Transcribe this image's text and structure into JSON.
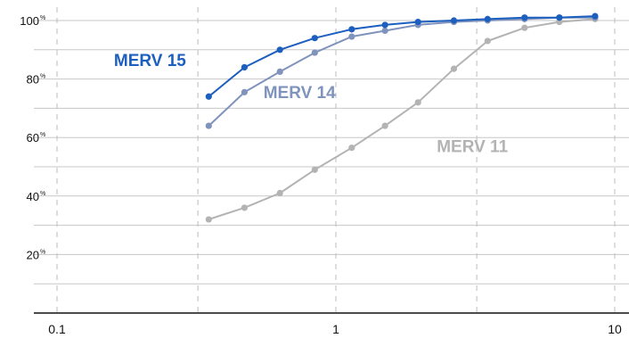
{
  "chart_data": {
    "type": "line",
    "title": "",
    "xlabel": "",
    "ylabel": "",
    "x_scale": "log",
    "xlim": [
      0.1,
      10
    ],
    "ylim": [
      0,
      105
    ],
    "grid": true,
    "x_ticks": [
      {
        "value": 0.1,
        "label": "0.1"
      },
      {
        "value": 1,
        "label": "1"
      },
      {
        "value": 10,
        "label": "10"
      }
    ],
    "y_ticks": [
      {
        "value": 20,
        "label": "20",
        "unit": "%"
      },
      {
        "value": 40,
        "label": "40",
        "unit": "%"
      },
      {
        "value": 60,
        "label": "60",
        "unit": "%"
      },
      {
        "value": 80,
        "label": "80",
        "unit": "%"
      },
      {
        "value": 100,
        "label": "100",
        "unit": "%"
      }
    ],
    "series": [
      {
        "name": "MERV 11",
        "color": "#b3b3b3",
        "label_anchor": {
          "x": 2.3,
          "y": 55
        },
        "x": [
          0.35,
          0.47,
          0.63,
          0.84,
          1.14,
          1.5,
          1.97,
          2.65,
          3.5,
          4.75,
          6.33,
          8.5
        ],
        "y": [
          32,
          36,
          41,
          49,
          56.5,
          64,
          72,
          83.5,
          93,
          97.5,
          99.5,
          100.5
        ]
      },
      {
        "name": "MERV 14",
        "color": "#7f93bd",
        "label_anchor": {
          "x": 0.55,
          "y": 73.5
        },
        "x": [
          0.35,
          0.47,
          0.63,
          0.84,
          1.14,
          1.5,
          1.97,
          2.65,
          3.5,
          4.75,
          6.33,
          8.5
        ],
        "y": [
          64,
          75.5,
          82.5,
          89,
          94.5,
          96.5,
          98.5,
          99.5,
          100,
          100.5,
          101,
          101
        ]
      },
      {
        "name": "MERV 15",
        "color": "#1d5fbf",
        "label_anchor": {
          "x": 0.16,
          "y": 84.5
        },
        "x": [
          0.35,
          0.47,
          0.63,
          0.84,
          1.14,
          1.5,
          1.97,
          2.65,
          3.5,
          4.75,
          6.33,
          8.5
        ],
        "y": [
          74,
          84,
          90,
          94,
          97,
          98.5,
          99.5,
          100,
          100.5,
          101,
          101,
          101.5
        ]
      }
    ]
  }
}
